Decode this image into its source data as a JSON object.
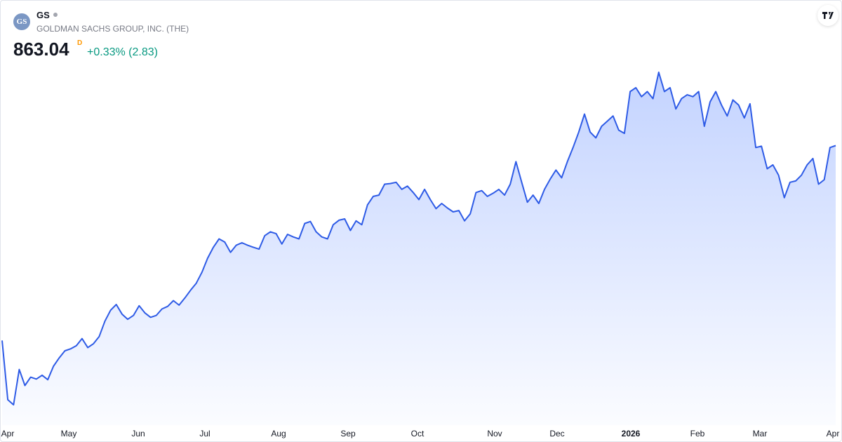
{
  "header": {
    "logo": "GS",
    "symbol": "GS",
    "company": "GOLDMAN SACHS GROUP, INC. (THE)",
    "price": "863.04",
    "interval": "D",
    "change": "+0.33% (2.83)"
  },
  "chart_data": {
    "type": "area",
    "color": "#2e5be6",
    "x_labels": [
      "Apr",
      "May",
      "Jun",
      "Jul",
      "Aug",
      "Sep",
      "Oct",
      "Nov",
      "Dec",
      "2026",
      "Feb",
      "Mar",
      "Apr"
    ],
    "values": [
      560,
      468,
      460,
      515,
      490,
      503,
      500,
      506,
      499,
      520,
      533,
      544,
      547,
      552,
      563,
      549,
      555,
      566,
      590,
      607,
      616,
      601,
      593,
      599,
      614,
      603,
      596,
      599,
      609,
      613,
      622,
      615,
      626,
      638,
      649,
      666,
      688,
      705,
      718,
      713,
      697,
      708,
      712,
      708,
      705,
      702,
      723,
      729,
      726,
      710,
      725,
      721,
      718,
      742,
      745,
      729,
      721,
      718,
      740,
      747,
      749,
      731,
      746,
      740,
      771,
      784,
      786,
      803,
      804,
      806,
      795,
      800,
      790,
      779,
      795,
      779,
      765,
      773,
      766,
      760,
      762,
      746,
      757,
      790,
      793,
      784,
      789,
      795,
      786,
      803,
      838,
      806,
      775,
      786,
      773,
      795,
      811,
      825,
      813,
      838,
      860,
      884,
      912,
      884,
      875,
      893,
      901,
      909,
      887,
      882,
      947,
      953,
      939,
      947,
      936,
      977,
      947,
      953,
      920,
      936,
      942,
      939,
      947,
      893,
      931,
      947,
      926,
      909,
      934,
      926,
      906,
      928,
      860,
      862,
      827,
      833,
      817,
      782,
      806,
      808,
      817,
      833,
      843,
      803,
      810,
      860,
      863.04
    ]
  }
}
